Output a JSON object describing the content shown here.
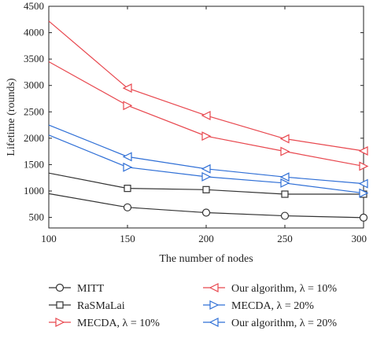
{
  "chart_data": {
    "type": "line",
    "xlabel": "The number of nodes",
    "ylabel": "Lifetime (rounds)",
    "xlim": [
      100,
      300
    ],
    "ylim": [
      300,
      4500
    ],
    "xticks": [
      100,
      150,
      200,
      250,
      300
    ],
    "yticks": [
      500,
      1000,
      1500,
      2000,
      2500,
      3000,
      3500,
      4000,
      4500
    ],
    "legend": "bottom",
    "grid": false,
    "series": [
      {
        "name": "MITT",
        "marker": "circle",
        "color": "#333333",
        "x": [
          100,
          150,
          200,
          250,
          300
        ],
        "y": [
          950,
          690,
          590,
          530,
          495
        ]
      },
      {
        "name": "RaSMaLai",
        "marker": "square",
        "color": "#333333",
        "x": [
          100,
          150,
          200,
          250,
          300
        ],
        "y": [
          1340,
          1050,
          1025,
          940,
          940
        ]
      },
      {
        "name": "MECDA, λ = 10%",
        "marker": "triangle-right",
        "color": "#e8474e",
        "x": [
          100,
          150,
          200,
          250,
          300
        ],
        "y": [
          3450,
          2620,
          2040,
          1750,
          1470
        ]
      },
      {
        "name": "Our algorithm, λ = 10%",
        "marker": "triangle-left",
        "color": "#e8474e",
        "x": [
          100,
          150,
          200,
          250,
          300
        ],
        "y": [
          4220,
          2950,
          2430,
          1990,
          1760
        ]
      },
      {
        "name": "MECDA, λ = 20%",
        "marker": "triangle-right",
        "color": "#2f6fd6",
        "x": [
          100,
          150,
          200,
          250,
          300
        ],
        "y": [
          2060,
          1450,
          1270,
          1150,
          960
        ]
      },
      {
        "name": "Our algorithm, λ = 20%",
        "marker": "triangle-left",
        "color": "#2f6fd6",
        "x": [
          100,
          150,
          200,
          250,
          300
        ],
        "y": [
          2250,
          1650,
          1420,
          1265,
          1140
        ]
      }
    ]
  }
}
